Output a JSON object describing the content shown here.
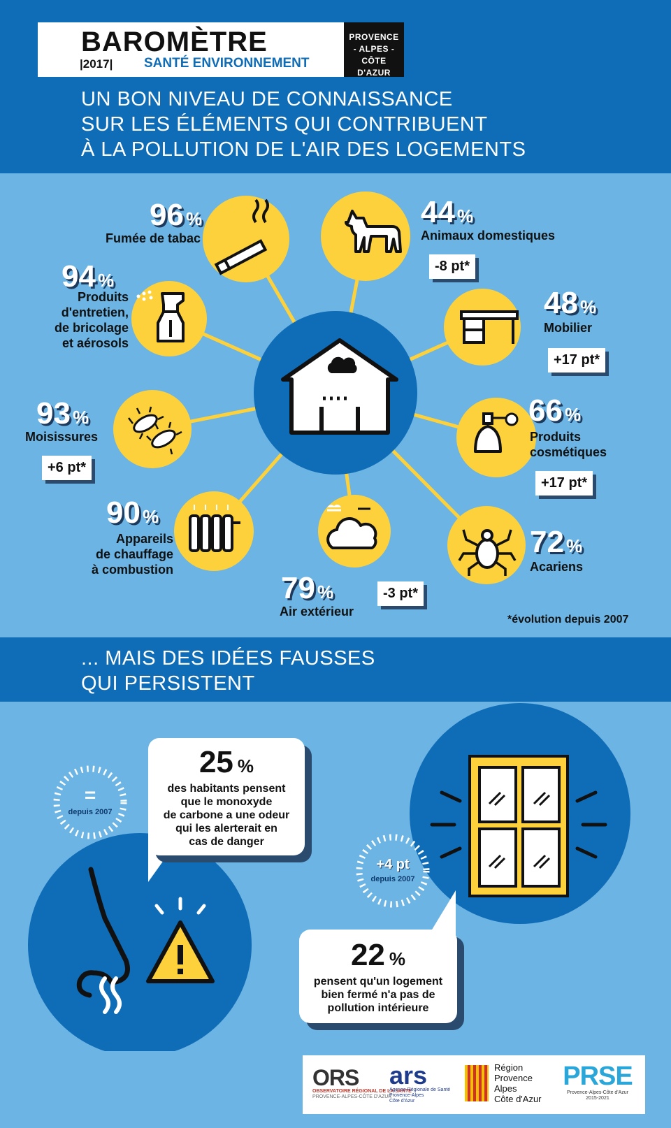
{
  "header": {
    "title": "BAROMÈTRE",
    "year": "|2017|",
    "subtitle": "SANTÉ ENVIRONNEMENT",
    "region": [
      "PROVENCE",
      "- ALPES -",
      "CÔTE D'AZUR"
    ],
    "headline": [
      "UN BON NIVEAU DE CONNAISSANCE",
      "SUR LES ÉLÉMENTS QUI CONTRIBUENT",
      "À LA POLLUTION DE L'AIR DES LOGEMENTS"
    ]
  },
  "percent_sign": "%",
  "stats": {
    "tabac": {
      "value": "96",
      "label": "Fumée de tabac",
      "icon": "cigarette-icon"
    },
    "entretien": {
      "value": "94",
      "label": [
        "Produits",
        "d'entretien,",
        "de bricolage",
        "et aérosols"
      ],
      "icon": "spray-bottle-icon"
    },
    "moisissures": {
      "value": "93",
      "label": "Moisissures",
      "badge": "+6 pt*",
      "icon": "mold-icon"
    },
    "chauffage": {
      "value": "90",
      "label": [
        "Appareils",
        "de chauffage",
        "à combustion"
      ],
      "icon": "radiator-icon"
    },
    "air": {
      "value": "79",
      "label": "Air extérieur",
      "badge": "-3 pt*",
      "icon": "cloud-icon"
    },
    "acariens": {
      "value": "72",
      "label": "Acariens",
      "icon": "mite-icon"
    },
    "cosmetiques": {
      "value": "66",
      "label": [
        "Produits",
        "cosmétiques"
      ],
      "badge": "+17 pt*",
      "icon": "perfume-icon"
    },
    "mobilier": {
      "value": "48",
      "label": "Mobilier",
      "badge": "+17 pt*",
      "icon": "desk-icon"
    },
    "animaux": {
      "value": "44",
      "label": "Animaux domestiques",
      "badge": "-8 pt*",
      "icon": "dog-icon"
    }
  },
  "footnote": "*évolution depuis 2007",
  "section2": {
    "headline": [
      "... MAIS DES IDÉES FAUSSES",
      "QUI PERSISTENT"
    ],
    "co": {
      "value": "25",
      "text": [
        "des habitants pensent",
        "que le monoxyde",
        "de carbone a une odeur",
        "qui les alerterait en",
        "cas de danger"
      ],
      "evolution": "=",
      "evolution_note": "depuis 2007"
    },
    "closed": {
      "value": "22",
      "text": [
        "pensent qu'un logement",
        "bien fermé n'a pas de",
        "pollution intérieure"
      ],
      "evolution": "+4 pt",
      "evolution_note": "depuis 2007"
    }
  },
  "logos": {
    "ors": {
      "name": "ORS",
      "line1": "OBSERVATOIRE RÉGIONAL DE LA SANTÉ",
      "line2": "PROVENCE-ALPES-CÔTE D'AZUR"
    },
    "ars": {
      "name": "ars",
      "line1": "Agence Régionale de Santé",
      "line2": "Provence-Alpes",
      "line3": "Côte d'Azur"
    },
    "region": [
      "Région",
      "Provence",
      "Alpes",
      "Côte d'Azur"
    ],
    "prse": {
      "name": "PRSE",
      "line1": "Provence-Alpes-Côte d'Azur",
      "line2": "2015-2021"
    }
  },
  "colors": {
    "dark_blue": "#0f6cb6",
    "light_blue": "#6cb4e4",
    "yellow": "#fdd13b"
  }
}
